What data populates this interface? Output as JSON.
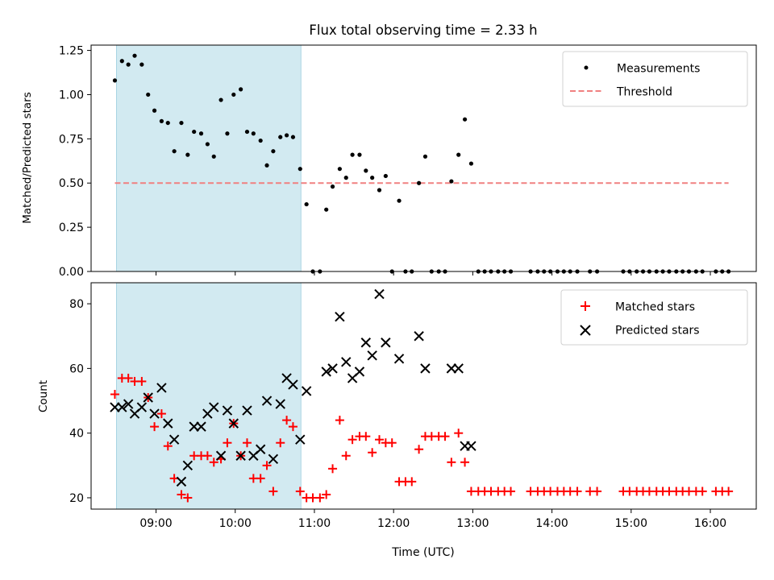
{
  "chart_data": [
    {
      "type": "scatter",
      "title": "Flux total observing time = 2.33 h",
      "xlabel": "",
      "ylabel": "Matched/Predicted stars",
      "ylim": [
        0,
        1.28
      ],
      "yticks": [
        "0.00",
        "0.25",
        "0.50",
        "0.75",
        "1.00",
        "1.25"
      ],
      "xlim_hours": [
        8.18,
        16.58
      ],
      "shaded_interval_hours": [
        8.5,
        10.83
      ],
      "threshold": 0.5,
      "legend": {
        "position": "top-right",
        "entries": [
          "Measurements",
          "Threshold"
        ]
      },
      "series": [
        {
          "name": "Measurements",
          "x_hours": [
            8.48,
            8.57,
            8.65,
            8.73,
            8.82,
            8.9,
            8.98,
            9.07,
            9.15,
            9.23,
            9.32,
            9.4,
            9.48,
            9.57,
            9.65,
            9.73,
            9.82,
            9.9,
            9.98,
            10.07,
            10.15,
            10.23,
            10.32,
            10.4,
            10.48,
            10.57,
            10.65,
            10.73,
            10.82,
            10.9,
            10.98,
            11.07,
            11.15,
            11.23,
            11.32,
            11.4,
            11.48,
            11.57,
            11.65,
            11.73,
            11.82,
            11.9,
            11.98,
            12.07,
            12.15,
            12.23,
            12.32,
            12.4,
            12.48,
            12.57,
            12.65,
            12.73,
            12.82,
            12.9,
            12.98,
            13.07,
            13.15,
            13.23,
            13.32,
            13.4,
            13.48,
            13.73,
            13.82,
            13.9,
            13.98,
            14.07,
            14.15,
            14.23,
            14.32,
            14.48,
            14.57,
            14.9,
            14.98,
            15.07,
            15.15,
            15.23,
            15.32,
            15.4,
            15.48,
            15.57,
            15.65,
            15.73,
            15.82,
            15.9,
            16.07,
            16.15,
            16.23
          ],
          "y": [
            1.08,
            1.19,
            1.17,
            1.22,
            1.17,
            1.0,
            0.91,
            0.85,
            0.84,
            0.68,
            0.84,
            0.66,
            0.79,
            0.78,
            0.72,
            0.65,
            0.97,
            0.78,
            1.0,
            1.03,
            0.79,
            0.78,
            0.74,
            0.6,
            0.68,
            0.76,
            0.77,
            0.76,
            0.58,
            0.38,
            0,
            0,
            0.35,
            0.48,
            0.58,
            0.53,
            0.66,
            0.66,
            0.57,
            0.53,
            0.46,
            0.54,
            0,
            0.4,
            0,
            0,
            0.5,
            0.65,
            0,
            0,
            0,
            0.51,
            0.66,
            0.86,
            0.61,
            0,
            0,
            0,
            0,
            0,
            0,
            0,
            0,
            0,
            0,
            0,
            0,
            0,
            0,
            0,
            0,
            0,
            0,
            0,
            0,
            0,
            0,
            0,
            0,
            0,
            0,
            0,
            0,
            0,
            0,
            0,
            0
          ]
        },
        {
          "name": "Threshold",
          "x_hours": [
            8.48,
            16.23
          ],
          "y": [
            0.5,
            0.5
          ]
        }
      ],
      "colors": {
        "measurements": "#000000",
        "threshold": "#f08080",
        "shade": "#add8e6"
      }
    },
    {
      "type": "scatter",
      "xlabel": "Time (UTC)",
      "ylabel": "Count",
      "ylim": [
        16.5,
        86.5
      ],
      "yticks": [
        "20",
        "40",
        "60",
        "80"
      ],
      "xticks": [
        "09:00",
        "10:00",
        "11:00",
        "12:00",
        "13:00",
        "14:00",
        "15:00",
        "16:00"
      ],
      "xlim_hours": [
        8.18,
        16.58
      ],
      "shaded_interval_hours": [
        8.5,
        10.83
      ],
      "legend": {
        "position": "top-right",
        "entries": [
          "Matched stars",
          "Predicted stars"
        ]
      },
      "series": [
        {
          "name": "Matched stars",
          "x_hours": [
            8.48,
            8.57,
            8.65,
            8.73,
            8.82,
            8.9,
            8.98,
            9.07,
            9.15,
            9.23,
            9.32,
            9.4,
            9.48,
            9.57,
            9.65,
            9.73,
            9.82,
            9.9,
            9.98,
            10.07,
            10.15,
            10.23,
            10.32,
            10.4,
            10.48,
            10.57,
            10.65,
            10.73,
            10.82,
            10.9,
            10.98,
            11.07,
            11.15,
            11.23,
            11.32,
            11.4,
            11.48,
            11.57,
            11.65,
            11.73,
            11.82,
            11.9,
            11.98,
            12.07,
            12.15,
            12.23,
            12.32,
            12.4,
            12.48,
            12.57,
            12.65,
            12.73,
            12.82,
            12.9,
            12.98,
            13.07,
            13.15,
            13.23,
            13.32,
            13.4,
            13.48,
            13.73,
            13.82,
            13.9,
            13.98,
            14.07,
            14.15,
            14.23,
            14.32,
            14.48,
            14.57,
            14.9,
            14.98,
            15.07,
            15.15,
            15.23,
            15.32,
            15.4,
            15.48,
            15.57,
            15.65,
            15.73,
            15.82,
            15.9,
            16.07,
            16.15,
            16.23
          ],
          "y": [
            52,
            57,
            57,
            56,
            56,
            51,
            42,
            46,
            36,
            26,
            21,
            20,
            33,
            33,
            33,
            31,
            32,
            37,
            43,
            33,
            37,
            26,
            26,
            30,
            22,
            37,
            44,
            42,
            22,
            20,
            20,
            20,
            21,
            29,
            44,
            33,
            38,
            39,
            39,
            34,
            38,
            37,
            37,
            25,
            25,
            25,
            35,
            39,
            39,
            39,
            39,
            31,
            40,
            31,
            22,
            22,
            22,
            22,
            22,
            22,
            22,
            22,
            22,
            22,
            22,
            22,
            22,
            22,
            22,
            22,
            22,
            22,
            22,
            22,
            22,
            22,
            22,
            22,
            22,
            22,
            22,
            22,
            22,
            22,
            22,
            22,
            22
          ]
        },
        {
          "name": "Predicted stars",
          "x_hours": [
            8.48,
            8.57,
            8.65,
            8.73,
            8.82,
            8.9,
            8.98,
            9.07,
            9.15,
            9.23,
            9.32,
            9.4,
            9.48,
            9.57,
            9.65,
            9.73,
            9.82,
            9.9,
            9.98,
            10.07,
            10.15,
            10.23,
            10.32,
            10.4,
            10.48,
            10.57,
            10.65,
            10.73,
            10.82,
            10.9,
            11.15,
            11.23,
            11.32,
            11.4,
            11.48,
            11.57,
            11.65,
            11.73,
            11.82,
            11.9,
            12.07,
            12.32,
            12.4,
            12.73,
            12.82,
            12.9,
            12.98
          ],
          "y": [
            48,
            48,
            49,
            46,
            48,
            51,
            46,
            54,
            43,
            38,
            25,
            30,
            42,
            42,
            46,
            48,
            33,
            47,
            43,
            33,
            47,
            33,
            35,
            50,
            32,
            49,
            57,
            55,
            38,
            53,
            59,
            60,
            76,
            62,
            57,
            59,
            68,
            64,
            83,
            68,
            63,
            70,
            60,
            60,
            60,
            36,
            36
          ]
        }
      ],
      "colors": {
        "matched": "#ff0000",
        "predicted": "#000000",
        "shade": "#add8e6"
      }
    }
  ]
}
